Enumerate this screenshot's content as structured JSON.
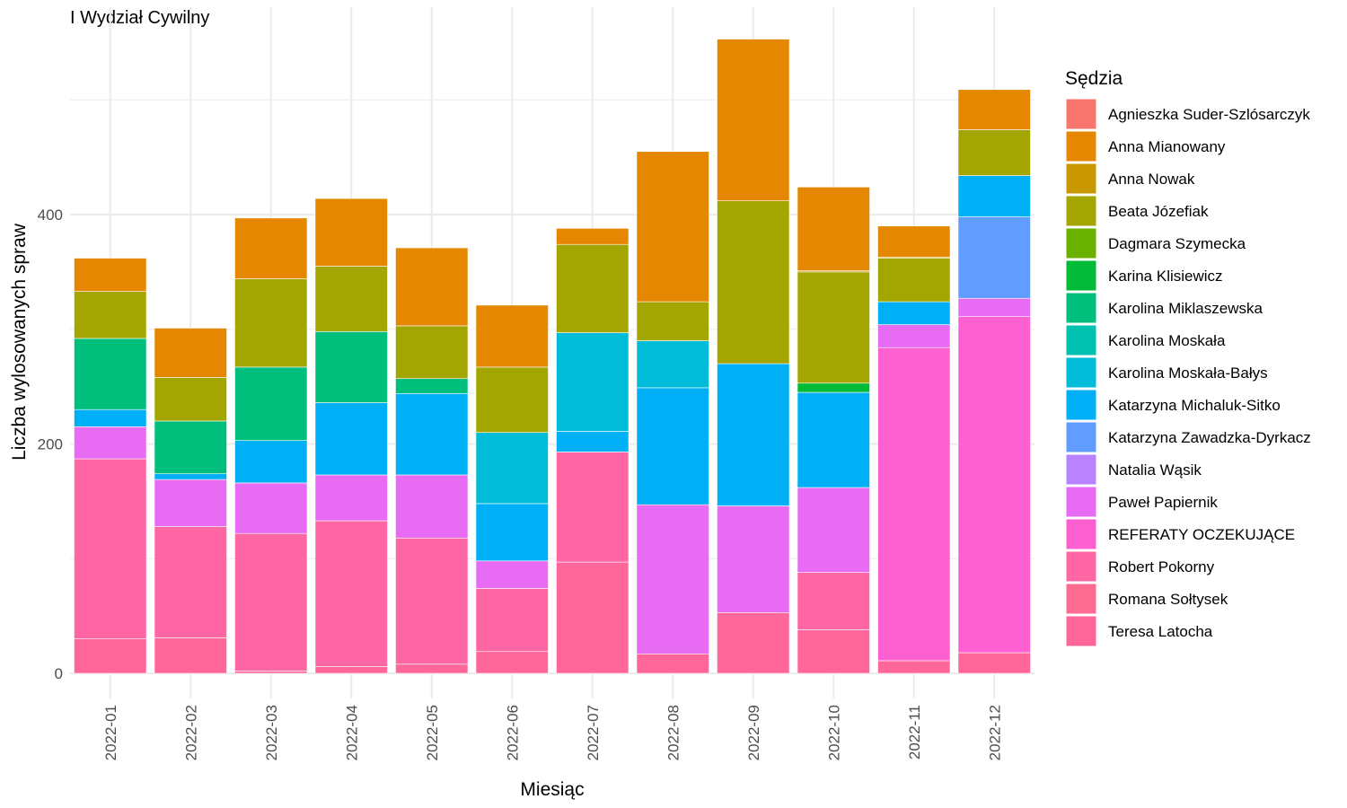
{
  "chart_data": {
    "type": "bar",
    "stacked": true,
    "title": "I Wydział Cywilny",
    "xlabel": "Miesiąc",
    "ylabel": "Liczba wylosowanych spraw",
    "ylim": [
      -22,
      578
    ],
    "yticks": [
      0,
      200,
      400
    ],
    "grid": true,
    "legend": {
      "title": "Sędzia",
      "position": "right"
    },
    "categories": [
      "2022-01",
      "2022-02",
      "2022-03",
      "2022-04",
      "2022-05",
      "2022-06",
      "2022-07",
      "2022-08",
      "2022-09",
      "2022-10",
      "2022-11",
      "2022-12"
    ],
    "series": [
      {
        "name": "Agnieszka Suder-Szlósarczyk",
        "color": "#F8766D",
        "values": [
          0,
          0,
          0,
          0,
          0,
          0,
          0,
          0,
          0,
          0,
          0,
          0
        ]
      },
      {
        "name": "Anna Mianowany",
        "color": "#E58700",
        "values": [
          29,
          43,
          53,
          59,
          68,
          54,
          14,
          131,
          141,
          73,
          27,
          35
        ]
      },
      {
        "name": "Anna Nowak",
        "color": "#C99800",
        "values": [
          0,
          0,
          0,
          0,
          0,
          0,
          0,
          0,
          0,
          1,
          1,
          0
        ]
      },
      {
        "name": "Beata Józefiak",
        "color": "#A3A500",
        "values": [
          41,
          38,
          77,
          57,
          46,
          57,
          77,
          34,
          142,
          97,
          38,
          40
        ]
      },
      {
        "name": "Dagmara Szymecka",
        "color": "#6BB100",
        "values": [
          0,
          0,
          0,
          0,
          0,
          0,
          0,
          0,
          0,
          0,
          0,
          0
        ]
      },
      {
        "name": "Karina Klisiewicz",
        "color": "#00BA38",
        "values": [
          0,
          0,
          0,
          0,
          0,
          0,
          0,
          0,
          0,
          8,
          0,
          0
        ]
      },
      {
        "name": "Karolina Miklaszewska",
        "color": "#00BF7D",
        "values": [
          62,
          46,
          64,
          62,
          13,
          0,
          0,
          0,
          0,
          0,
          0,
          0
        ]
      },
      {
        "name": "Karolina Moskała",
        "color": "#00C0AF",
        "values": [
          0,
          0,
          0,
          0,
          0,
          0,
          0,
          0,
          0,
          0,
          0,
          0
        ]
      },
      {
        "name": "Karolina Moskała-Bałys",
        "color": "#00BCD8",
        "values": [
          0,
          0,
          0,
          0,
          0,
          62,
          86,
          41,
          0,
          0,
          0,
          0
        ]
      },
      {
        "name": "Katarzyna Michaluk-Sitko",
        "color": "#00B0F6",
        "values": [
          15,
          5,
          37,
          63,
          71,
          50,
          18,
          102,
          124,
          83,
          20,
          36
        ]
      },
      {
        "name": "Katarzyna Zawadzka-Dyrkacz",
        "color": "#619CFF",
        "values": [
          0,
          0,
          0,
          0,
          0,
          0,
          0,
          0,
          0,
          0,
          0,
          71
        ]
      },
      {
        "name": "Natalia Wąsik",
        "color": "#B983FF",
        "values": [
          0,
          0,
          0,
          0,
          0,
          0,
          0,
          0,
          0,
          0,
          0,
          0
        ]
      },
      {
        "name": "Paweł Papiernik",
        "color": "#E76BF3",
        "values": [
          28,
          41,
          44,
          40,
          55,
          24,
          0,
          130,
          93,
          74,
          20,
          16
        ]
      },
      {
        "name": "REFERATY OCZEKUJĄCE",
        "color": "#FD61D1",
        "values": [
          0,
          0,
          0,
          0,
          0,
          0,
          0,
          0,
          0,
          0,
          273,
          293
        ]
      },
      {
        "name": "Robert Pokorny",
        "color": "#FF67A4",
        "values": [
          157,
          97,
          120,
          127,
          110,
          55,
          96,
          0,
          0,
          50,
          0,
          0
        ]
      },
      {
        "name": "Romana Sołtysek",
        "color": "#FF6C91",
        "values": [
          0,
          0,
          0,
          0,
          0,
          0,
          0,
          0,
          0,
          0,
          0,
          0
        ]
      },
      {
        "name": "Teresa Latocha",
        "color": "#FF6699",
        "values": [
          30,
          31,
          2,
          6,
          8,
          19,
          97,
          17,
          53,
          38,
          11,
          18
        ]
      }
    ]
  }
}
